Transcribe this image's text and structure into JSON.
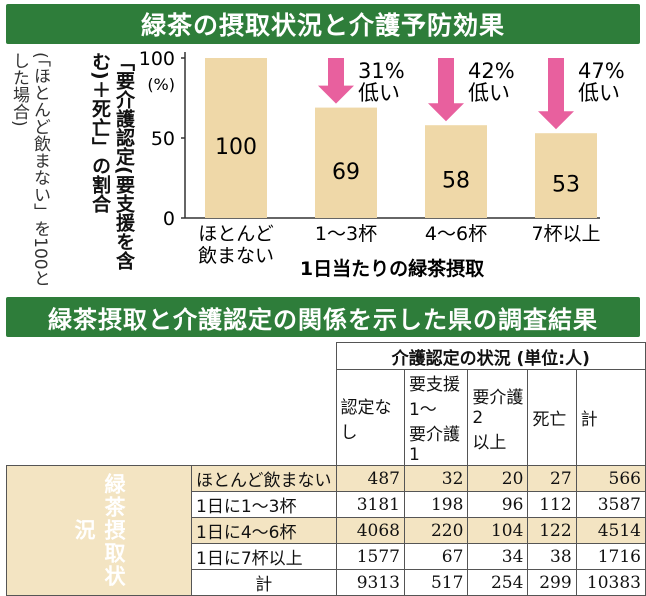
{
  "titles": {
    "top": "緑茶の摂取状況と介護予防効果",
    "table": "緑茶摂取と介護認定の関係を示した県の調査結果"
  },
  "chart_data": {
    "type": "bar",
    "categories": [
      "ほとんど飲まない",
      "1～3杯",
      "4～6杯",
      "7杯以上"
    ],
    "category_lines": [
      [
        "ほとんど",
        "飲まない"
      ],
      [
        "1～3杯"
      ],
      [
        "4～6杯"
      ],
      [
        "7杯以上"
      ]
    ],
    "values": [
      100,
      69,
      58,
      53
    ],
    "ylim": [
      0,
      100
    ],
    "yticks": [
      0,
      50,
      100
    ],
    "yunit": "(%)",
    "ylabel": "「要介護認定(要支援を含む)＋死亡」の割合",
    "ynote": "(「ほとんど飲まない」を100とした場合)",
    "xlabel": "1日当たりの緑茶摂取",
    "annotations": [
      {
        "bar": 1,
        "lines": [
          "31%",
          "低い"
        ]
      },
      {
        "bar": 2,
        "lines": [
          "42%",
          "低い"
        ]
      },
      {
        "bar": 3,
        "lines": [
          "47%",
          "低い"
        ]
      }
    ],
    "colors": {
      "bar": "#efd8a8",
      "arrow": "#e8609e"
    }
  },
  "table": {
    "group_header": "介護認定の状況 (単位:人)",
    "columns": [
      [
        "認定なし"
      ],
      [
        "要支援1～",
        "要介護1"
      ],
      [
        "要介護2",
        "以上"
      ],
      [
        "死亡"
      ],
      [
        "計"
      ]
    ],
    "side_label": "緑茶摂取状況",
    "rows": [
      {
        "label": "ほとんど飲まない",
        "values": [
          "487",
          "32",
          "20",
          "27",
          "566"
        ]
      },
      {
        "label": "1日に1～3杯",
        "values": [
          "3181",
          "198",
          "96",
          "112",
          "3587"
        ]
      },
      {
        "label": "1日に4～6杯",
        "values": [
          "4068",
          "220",
          "104",
          "122",
          "4514"
        ]
      },
      {
        "label": "1日に7杯以上",
        "values": [
          "1577",
          "67",
          "34",
          "38",
          "1716"
        ]
      }
    ],
    "total": {
      "label": "計",
      "values": [
        "9313",
        "517",
        "254",
        "299",
        "10383"
      ]
    }
  },
  "colors": {
    "banner": "#2e7d3a",
    "row_shade": "#f3e4c2"
  }
}
